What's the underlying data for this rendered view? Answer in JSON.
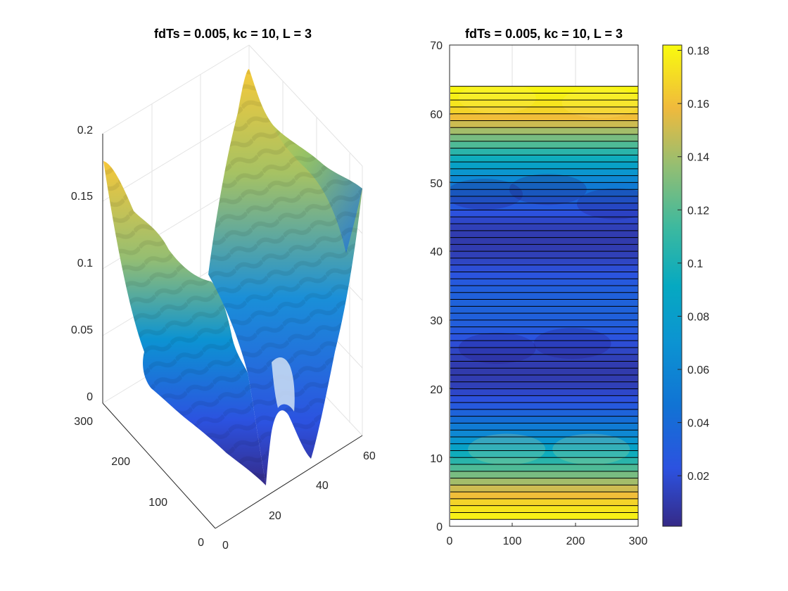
{
  "figure": {
    "left_title": "fdTs = 0.005, kc = 10, L = 3",
    "right_title": "fdTs = 0.005, kc = 10, L = 3"
  },
  "chart_data": [
    {
      "type": "surface",
      "title": "fdTs = 0.005, kc = 10, L = 3",
      "x_ticks": [
        "0",
        "20",
        "40",
        "60"
      ],
      "y_ticks": [
        "0",
        "100",
        "200",
        "300"
      ],
      "z_ticks": [
        "0",
        "0.05",
        "0.1",
        "0.15",
        "0.2"
      ],
      "xlim": [
        0,
        64
      ],
      "ylim": [
        0,
        300
      ],
      "zlim": [
        0,
        0.2
      ],
      "grid": true,
      "colormap": "parula",
      "description_values": {
        "x_peaks": [
          1,
          64
        ],
        "x_trough": 32,
        "peak_value": 0.18,
        "min_value": 0.003
      }
    },
    {
      "type": "heatmap",
      "title": "fdTs = 0.005, kc = 10, L = 3",
      "x_ticks": [
        "0",
        "100",
        "200",
        "300"
      ],
      "y_ticks": [
        "0",
        "10",
        "20",
        "30",
        "40",
        "50",
        "60",
        "70"
      ],
      "xlim": [
        0,
        300
      ],
      "ylim": [
        0,
        70
      ],
      "rows": 64,
      "row_profile": [
        0.18,
        0.178,
        0.174,
        0.168,
        0.16,
        0.15,
        0.14,
        0.129,
        0.118,
        0.106,
        0.095,
        0.084,
        0.073,
        0.062,
        0.052,
        0.043,
        0.035,
        0.028,
        0.022,
        0.017,
        0.013,
        0.011,
        0.01,
        0.011,
        0.013,
        0.016,
        0.02,
        0.024,
        0.028,
        0.031,
        0.033,
        0.034,
        0.034,
        0.033,
        0.031,
        0.028,
        0.024,
        0.02,
        0.016,
        0.013,
        0.011,
        0.01,
        0.011,
        0.013,
        0.017,
        0.022,
        0.028,
        0.035,
        0.043,
        0.052,
        0.062,
        0.073,
        0.084,
        0.095,
        0.106,
        0.118,
        0.129,
        0.14,
        0.15,
        0.16,
        0.168,
        0.174,
        0.178,
        0.18
      ],
      "colorbar": {
        "ticks": [
          "0.02",
          "0.04",
          "0.06",
          "0.08",
          "0.1",
          "0.12",
          "0.14",
          "0.16",
          "0.18"
        ],
        "tick_values": [
          0.02,
          0.04,
          0.06,
          0.08,
          0.1,
          0.12,
          0.14,
          0.16,
          0.18
        ],
        "range": [
          0.001,
          0.182
        ]
      }
    }
  ]
}
